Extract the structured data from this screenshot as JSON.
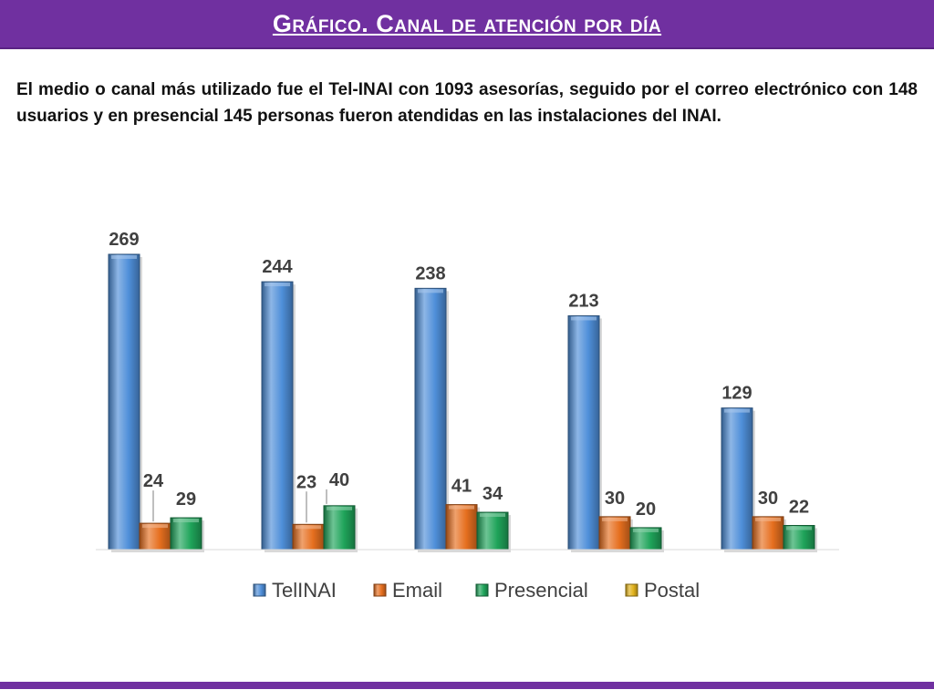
{
  "slide": {
    "title": "Gráfico. Canal de atención por día",
    "description": "El medio o canal más utilizado fue el Tel-INAI con 1093 asesorías, seguido por el correo electrónico con 148 usuarios y en  presencial 145 personas fueron atendidas en las instalaciones del INAI."
  },
  "colors": {
    "brand_purple": "#7030a0",
    "telinai": "#4f8fd9",
    "email": "#e66f1f",
    "presencial": "#1fa45a",
    "postal": "#e2b21c"
  },
  "chart_data": {
    "type": "bar",
    "categories": [
      "",
      "",
      "",
      "",
      ""
    ],
    "series": [
      {
        "name": "TelINAI",
        "values": [
          269,
          244,
          238,
          213,
          129
        ]
      },
      {
        "name": "Email",
        "values": [
          24,
          23,
          41,
          30,
          30
        ]
      },
      {
        "name": "Presencial",
        "values": [
          29,
          40,
          34,
          20,
          22
        ]
      },
      {
        "name": "Postal",
        "values": [
          null,
          null,
          null,
          null,
          null
        ]
      }
    ],
    "ylim": [
      0,
      300
    ],
    "grid": false,
    "legend_position": "bottom"
  }
}
